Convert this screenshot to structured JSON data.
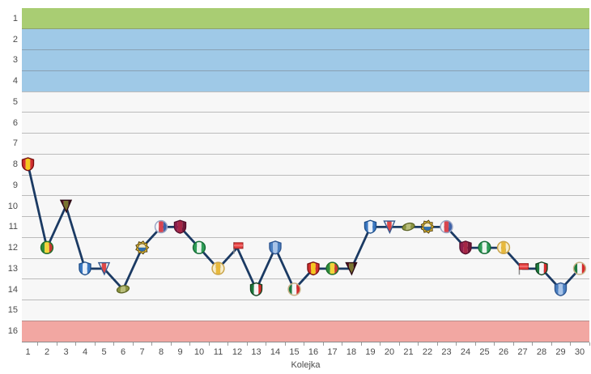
{
  "chart_data": {
    "type": "line",
    "title": "",
    "xlabel": "Kolejka",
    "ylabel": "",
    "x": [
      1,
      2,
      3,
      4,
      5,
      6,
      7,
      8,
      9,
      10,
      11,
      12,
      13,
      14,
      15,
      16,
      17,
      18,
      19,
      20,
      21,
      22,
      23,
      24,
      25,
      26,
      27,
      28,
      29,
      30
    ],
    "series": [
      {
        "name": "league-position-after-round",
        "values": [
          8,
          12,
          10,
          13,
          13,
          14,
          12,
          11,
          11,
          12,
          13,
          12,
          14,
          12,
          14,
          13,
          13,
          13,
          11,
          11,
          11,
          11,
          11,
          12,
          12,
          12,
          13,
          13,
          14,
          13
        ]
      }
    ],
    "x_tick_labels": [
      "1",
      "2",
      "3",
      "4",
      "5",
      "6",
      "7",
      "8",
      "9",
      "10",
      "11",
      "12",
      "13",
      "14",
      "15",
      "16",
      "17",
      "18",
      "19",
      "20",
      "21",
      "22",
      "23",
      "24",
      "25",
      "26",
      "27",
      "28",
      "29",
      "30"
    ],
    "y_tick_labels": [
      "1",
      "2",
      "3",
      "4",
      "5",
      "6",
      "7",
      "8",
      "9",
      "10",
      "11",
      "12",
      "13",
      "14",
      "15",
      "16"
    ],
    "ylim": [
      1,
      16
    ],
    "y_inverted": true,
    "grid": true,
    "legend": false,
    "line_color": "#1b3a63",
    "zones": [
      {
        "from_row": 1,
        "to_row": 1,
        "color": "#a9cd73",
        "name": "top-zone-band"
      },
      {
        "from_row": 2,
        "to_row": 4,
        "color": "#9fc9e7",
        "name": "upper-zone-band"
      },
      {
        "from_row": 5,
        "to_row": 15,
        "color": "#f7f7f7",
        "name": "mid-zone-band"
      },
      {
        "from_row": 16,
        "to_row": 16,
        "color": "#f2a7a2",
        "name": "bottom-zone-band"
      }
    ],
    "marker_icons": {
      "round_icon_index": [
        0,
        1,
        2,
        3,
        4,
        5,
        6,
        7,
        8,
        9,
        10,
        11,
        12,
        13,
        14,
        0,
        1,
        2,
        3,
        4,
        5,
        6,
        7,
        8,
        9,
        10,
        11,
        12,
        13,
        14
      ],
      "icons": [
        {
          "name": "red-yellow-shield-crest-icon",
          "shape": "shield",
          "border": "#7a1010",
          "stripes": [
            "#d22f2f",
            "#f5c71e",
            "#d22f2f"
          ]
        },
        {
          "name": "green-yellow-round-crest-icon",
          "shape": "circle",
          "border": "#1f6e2c",
          "stripes": [
            "#2f8e3c",
            "#f2d43a",
            "#c8372f"
          ]
        },
        {
          "name": "dark-pennant-crest-icon",
          "shape": "triangle",
          "border": "#2e0a14",
          "stripes": [
            "#5d1224",
            "#7a7430",
            "#38101c"
          ]
        },
        {
          "name": "blue-striped-shield-crest-icon",
          "shape": "shield",
          "border": "#1f4f8a",
          "stripes": [
            "#3a78c2",
            "#e8f0fa",
            "#3a78c2"
          ]
        },
        {
          "name": "red-white-pennant-crest-icon",
          "shape": "triangle",
          "border": "#35598f",
          "stripes": [
            "#f2f2f2",
            "#dd4747",
            "#f2f2f2"
          ]
        },
        {
          "name": "olive-blob-crest-icon",
          "shape": "blob",
          "border": "#5c6426",
          "stripes": [
            "#8b9440",
            "#b9be7a",
            "#8b9440"
          ]
        },
        {
          "name": "gold-gear-crest-icon",
          "shape": "gear",
          "border": "#574410",
          "stripes": [
            "#e8c23a",
            "#2f6fb0"
          ]
        },
        {
          "name": "white-red-blue-crest-icon",
          "shape": "circle",
          "border": "#9aa6c4",
          "stripes": [
            "#f5f5f8",
            "#d8454f",
            "#3e62a8"
          ]
        },
        {
          "name": "maroon-shield-crest-icon",
          "shape": "shield",
          "border": "#55102c",
          "stripes": [
            "#8e1f4e",
            "#a62646",
            "#701838"
          ]
        },
        {
          "name": "green-ring-round-crest-icon",
          "shape": "circle",
          "border": "#176e38",
          "stripes": [
            "#2f9e57",
            "#e9f5ec",
            "#2f9e57"
          ]
        },
        {
          "name": "cream-sun-round-crest-icon",
          "shape": "circle",
          "border": "#c9a44a",
          "stripes": [
            "#f7ecc9",
            "#e8b93c",
            "#f7ecc9"
          ]
        },
        {
          "name": "red-flag-crest-icon",
          "shape": "flag",
          "border": "#a02424",
          "stripes": [
            "#e84040",
            "#f07070"
          ]
        },
        {
          "name": "green-white-red-shield-crest-icon",
          "shape": "shield",
          "border": "#12421f",
          "stripes": [
            "#1d7a3e",
            "#f5f5f5",
            "#d42c2c"
          ]
        },
        {
          "name": "blue-zigzag-shield-crest-icon",
          "shape": "shield",
          "border": "#2d5590",
          "stripes": [
            "#4a7fc1",
            "#a9c4e8",
            "#4a7fc1"
          ]
        },
        {
          "name": "green-red-round-crest-icon",
          "shape": "circle",
          "border": "#c9b288",
          "stripes": [
            "#1d7a3e",
            "#f5f5f5",
            "#d42c2c"
          ]
        }
      ]
    }
  }
}
